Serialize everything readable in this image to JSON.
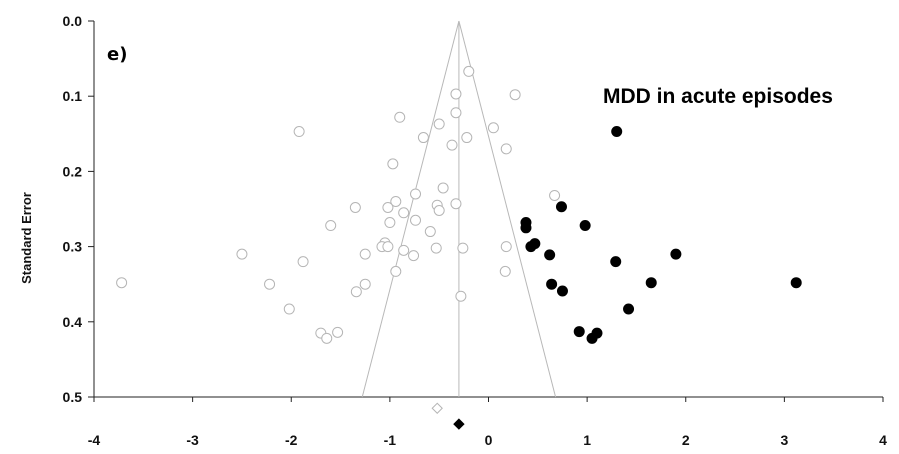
{
  "chart_data": {
    "type": "scatter",
    "panel_label": "e)",
    "title": "MDD in acute episodes",
    "xlabel": "",
    "ylabel": "Standard Error",
    "xlim": [
      -4,
      4
    ],
    "ylim": [
      0,
      0.5
    ],
    "y_reversed": true,
    "x_ticks": [
      "-4",
      "-3",
      "-2",
      "-1",
      "0",
      "1",
      "2",
      "3",
      "4"
    ],
    "y_ticks": [
      "0.0",
      "0.1",
      "0.2",
      "0.3",
      "0.4",
      "0.5"
    ],
    "grid": false,
    "funnel": {
      "center": -0.3,
      "apex_se": 0.0,
      "base_se": 0.5,
      "base_left": -1.28,
      "base_right": 0.68
    },
    "series": [
      {
        "marker": "open-circle",
        "color": "#b5b5b5",
        "points": [
          [
            -0.2,
            0.067
          ],
          [
            -0.33,
            0.097
          ],
          [
            0.27,
            0.098
          ],
          [
            -0.9,
            0.128
          ],
          [
            -0.5,
            0.137
          ],
          [
            -1.92,
            0.147
          ],
          [
            0.05,
            0.142
          ],
          [
            -0.33,
            0.122
          ],
          [
            -0.66,
            0.155
          ],
          [
            -0.22,
            0.155
          ],
          [
            -0.37,
            0.165
          ],
          [
            0.18,
            0.17
          ],
          [
            -0.97,
            0.19
          ],
          [
            -0.46,
            0.222
          ],
          [
            -0.74,
            0.23
          ],
          [
            0.67,
            0.232
          ],
          [
            -0.94,
            0.24
          ],
          [
            -0.33,
            0.243
          ],
          [
            -1.35,
            0.248
          ],
          [
            -1.02,
            0.248
          ],
          [
            -0.52,
            0.245
          ],
          [
            -0.5,
            0.252
          ],
          [
            -0.86,
            0.255
          ],
          [
            -1.0,
            0.268
          ],
          [
            -0.74,
            0.265
          ],
          [
            -1.6,
            0.272
          ],
          [
            -0.59,
            0.28
          ],
          [
            -1.05,
            0.295
          ],
          [
            -1.08,
            0.3
          ],
          [
            -1.02,
            0.3
          ],
          [
            -0.86,
            0.305
          ],
          [
            -0.76,
            0.312
          ],
          [
            -0.53,
            0.302
          ],
          [
            -0.26,
            0.302
          ],
          [
            0.18,
            0.3
          ],
          [
            -2.5,
            0.31
          ],
          [
            -1.25,
            0.31
          ],
          [
            -1.88,
            0.32
          ],
          [
            -0.94,
            0.333
          ],
          [
            0.17,
            0.333
          ],
          [
            -2.22,
            0.35
          ],
          [
            -1.25,
            0.35
          ],
          [
            -1.34,
            0.36
          ],
          [
            -0.28,
            0.366
          ],
          [
            -3.72,
            0.348
          ],
          [
            -2.02,
            0.383
          ],
          [
            -1.7,
            0.415
          ],
          [
            -1.53,
            0.414
          ],
          [
            -1.64,
            0.422
          ]
        ]
      },
      {
        "marker": "filled-circle",
        "color": "#000000",
        "points": [
          [
            1.3,
            0.147
          ],
          [
            0.38,
            0.268
          ],
          [
            0.38,
            0.275
          ],
          [
            0.74,
            0.247
          ],
          [
            0.98,
            0.272
          ],
          [
            0.43,
            0.3
          ],
          [
            0.47,
            0.296
          ],
          [
            0.62,
            0.311
          ],
          [
            1.29,
            0.32
          ],
          [
            1.9,
            0.31
          ],
          [
            0.64,
            0.35
          ],
          [
            0.75,
            0.359
          ],
          [
            1.65,
            0.348
          ],
          [
            3.12,
            0.348
          ],
          [
            1.42,
            0.383
          ],
          [
            0.92,
            0.413
          ],
          [
            1.1,
            0.415
          ],
          [
            1.05,
            0.422
          ]
        ]
      }
    ],
    "summary_markers": [
      {
        "marker": "open-diamond",
        "color": "#b5b5b5",
        "x": -0.52,
        "se": 0.515
      },
      {
        "marker": "filled-diamond",
        "color": "#000000",
        "x": -0.3,
        "se": 0.536
      }
    ]
  }
}
